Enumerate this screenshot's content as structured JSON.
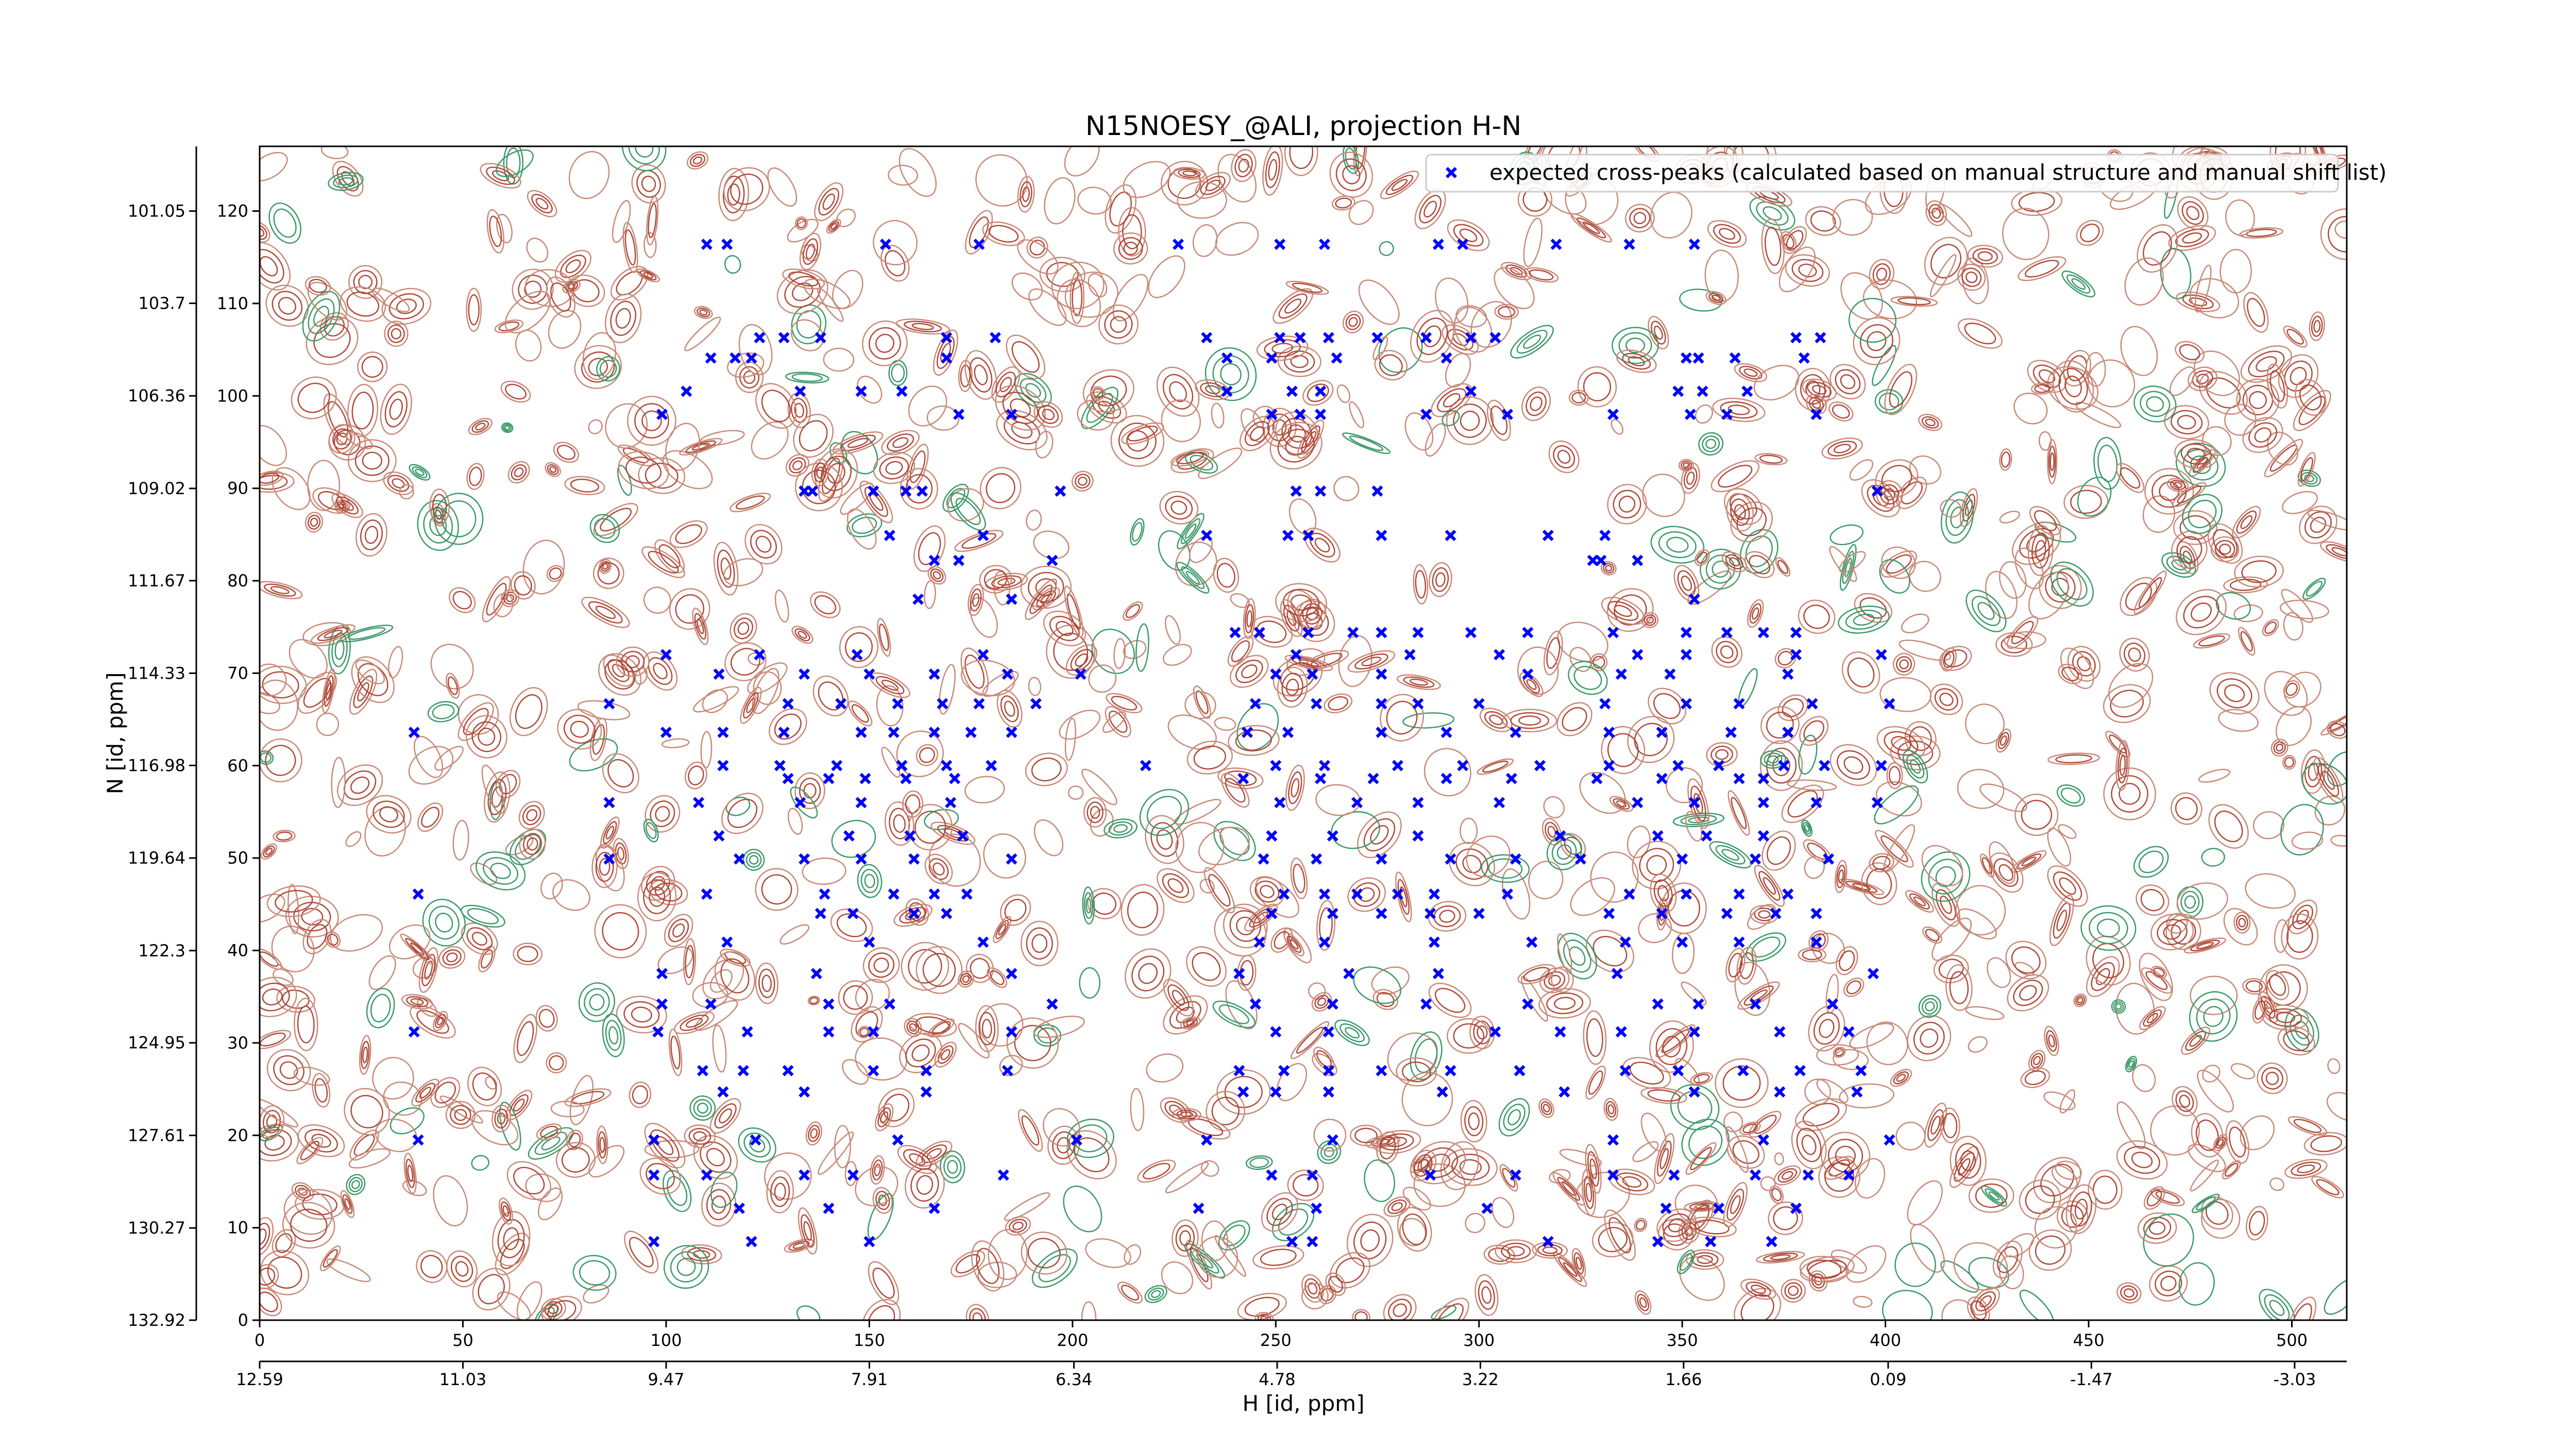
{
  "chart_data": {
    "type": "scatter",
    "title": "N15NOESY_@ALI, projection H-N",
    "x_label": "H [id, ppm]",
    "y_label": "N [id, ppm]",
    "xlim": [
      0,
      513.5
    ],
    "xticks": [
      0,
      50,
      100,
      150,
      200,
      250,
      300,
      350,
      400,
      450,
      500
    ],
    "ylim": [
      0,
      127
    ],
    "yticks": [
      0,
      10,
      20,
      30,
      40,
      50,
      60,
      70,
      80,
      90,
      100,
      110,
      120
    ],
    "x2lim": [
      12.59,
      -3.43
    ],
    "x2ticks": [
      12.59,
      11.03,
      9.47,
      7.91,
      6.34,
      4.78,
      3.22,
      1.66,
      0.09,
      -1.47,
      -3.03
    ],
    "y2lim": [
      132.92,
      99.19
    ],
    "y2ticks": [
      132.92,
      130.27,
      127.61,
      124.95,
      122.3,
      119.64,
      116.98,
      114.33,
      111.67,
      109.02,
      106.36,
      103.7,
      101.05
    ],
    "legend": "upper right",
    "series": [
      {
        "name": "expected cross-peaks (calculated based on manual structure and manual shift list)",
        "color": "#0000ff",
        "x": [
          110,
          115,
          154,
          177,
          226,
          251,
          262,
          290,
          296,
          319,
          337,
          353,
          123,
          129,
          138,
          169,
          181,
          233,
          251,
          256,
          263,
          275,
          287,
          298,
          304,
          378,
          384,
          111,
          117,
          121,
          169,
          238,
          249,
          265,
          292,
          351,
          354,
          363,
          380,
          105,
          133,
          148,
          158,
          238,
          254,
          261,
          298,
          349,
          355,
          366,
          99,
          172,
          185,
          249,
          256,
          261,
          287,
          307,
          333,
          352,
          361,
          383,
          134,
          136,
          151,
          159,
          163,
          197,
          255,
          261,
          275,
          398,
          155,
          178,
          233,
          253,
          258,
          276,
          293,
          317,
          331,
          166,
          172,
          195,
          328,
          330,
          339,
          162,
          185,
          353,
          240,
          246,
          258,
          269,
          276,
          285,
          298,
          312,
          333,
          351,
          361,
          370,
          378,
          100,
          123,
          147,
          178,
          255,
          283,
          305,
          339,
          351,
          378,
          399,
          113,
          134,
          150,
          166,
          184,
          202,
          250,
          259,
          276,
          312,
          335,
          347,
          376,
          86,
          130,
          143,
          157,
          168,
          177,
          191,
          245,
          260,
          276,
          285,
          300,
          331,
          351,
          364,
          382,
          401,
          38,
          100,
          114,
          129,
          148,
          156,
          166,
          175,
          185,
          243,
          253,
          276,
          292,
          309,
          332,
          345,
          362,
          376,
          114,
          128,
          142,
          158,
          169,
          180,
          218,
          250,
          262,
          280,
          296,
          315,
          332,
          349,
          359,
          375,
          385,
          399,
          130,
          140,
          149,
          159,
          171,
          242,
          261,
          274,
          292,
          308,
          329,
          345,
          364,
          370,
          86,
          108,
          133,
          148,
          170,
          251,
          270,
          285,
          305,
          339,
          353,
          370,
          383,
          398,
          113,
          145,
          160,
          173,
          249,
          264,
          285,
          320,
          344,
          356,
          370,
          86,
          118,
          134,
          148,
          161,
          185,
          247,
          260,
          276,
          293,
          309,
          325,
          350,
          368,
          386,
          39,
          110,
          139,
          156,
          166,
          174,
          252,
          262,
          270,
          280,
          289,
          307,
          337,
          351,
          364,
          376,
          138,
          146,
          161,
          169,
          249,
          264,
          276,
          288,
          300,
          332,
          345,
          361,
          373,
          383,
          115,
          150,
          178,
          246,
          262,
          289,
          313,
          336,
          350,
          364,
          383,
          99,
          137,
          185,
          241,
          268,
          290,
          334,
          397,
          99,
          111,
          140,
          155,
          195,
          245,
          264,
          287,
          312,
          344,
          354,
          368,
          387,
          38,
          98,
          120,
          140,
          151,
          185,
          250,
          263,
          304,
          320,
          335,
          353,
          374,
          391,
          109,
          119,
          130,
          151,
          164,
          184,
          241,
          252,
          263,
          276,
          293,
          310,
          336,
          349,
          365,
          379,
          394,
          114,
          134,
          164,
          242,
          250,
          263,
          291,
          321,
          353,
          374,
          393,
          39,
          97,
          122,
          157,
          201,
          233,
          264,
          333,
          370,
          401,
          97,
          110,
          134,
          146,
          183,
          249,
          259,
          288,
          309,
          333,
          348,
          368,
          381,
          391,
          118,
          140,
          166,
          231,
          260,
          302,
          346,
          359,
          378,
          97,
          121,
          150,
          254,
          259,
          317,
          344,
          357,
          372
        ],
        "values": [
          116.4,
          116.4,
          116.4,
          116.4,
          116.4,
          116.4,
          116.4,
          116.4,
          116.4,
          116.4,
          116.4,
          116.4,
          106.3,
          106.3,
          106.3,
          106.3,
          106.3,
          106.3,
          106.3,
          106.3,
          106.3,
          106.3,
          106.3,
          106.3,
          106.3,
          106.3,
          106.3,
          104.1,
          104.1,
          104.1,
          104.1,
          104.1,
          104.1,
          104.1,
          104.1,
          104.1,
          104.1,
          104.1,
          104.1,
          100.5,
          100.5,
          100.5,
          100.5,
          100.5,
          100.5,
          100.5,
          100.5,
          100.5,
          100.5,
          100.5,
          98,
          98,
          98,
          98,
          98,
          98,
          98,
          98,
          98,
          98,
          98,
          98,
          89.7,
          89.7,
          89.7,
          89.7,
          89.7,
          89.7,
          89.7,
          89.7,
          89.7,
          89.7,
          84.9,
          84.9,
          84.9,
          84.9,
          84.9,
          84.9,
          84.9,
          84.9,
          84.9,
          82.2,
          82.2,
          82.2,
          82.2,
          82.2,
          82.2,
          78,
          78,
          78,
          74.4,
          74.4,
          74.4,
          74.4,
          74.4,
          74.4,
          74.4,
          74.4,
          74.4,
          74.4,
          74.4,
          74.4,
          74.4,
          72,
          72,
          72,
          72,
          72,
          72,
          72,
          72,
          72,
          72,
          72,
          69.9,
          69.9,
          69.9,
          69.9,
          69.9,
          69.9,
          69.9,
          69.9,
          69.9,
          69.9,
          69.9,
          69.9,
          69.9,
          66.7,
          66.7,
          66.7,
          66.7,
          66.7,
          66.7,
          66.7,
          66.7,
          66.7,
          66.7,
          66.7,
          66.7,
          66.7,
          66.7,
          66.7,
          66.7,
          66.7,
          63.6,
          63.6,
          63.6,
          63.6,
          63.6,
          63.6,
          63.6,
          63.6,
          63.6,
          63.6,
          63.6,
          63.6,
          63.6,
          63.6,
          63.6,
          63.6,
          63.6,
          63.6,
          60,
          60,
          60,
          60,
          60,
          60,
          60,
          60,
          60,
          60,
          60,
          60,
          60,
          60,
          60,
          60,
          60,
          60,
          58.6,
          58.6,
          58.6,
          58.6,
          58.6,
          58.6,
          58.6,
          58.6,
          58.6,
          58.6,
          58.6,
          58.6,
          58.6,
          58.6,
          56,
          56,
          56,
          56,
          56,
          56,
          56,
          56,
          56,
          56,
          56,
          56,
          56,
          56,
          52.4,
          52.4,
          52.4,
          52.4,
          52.4,
          52.4,
          52.4,
          52.4,
          52.4,
          52.4,
          52.4,
          49.9,
          49.9,
          49.9,
          49.9,
          49.9,
          49.9,
          49.9,
          49.9,
          49.9,
          49.9,
          49.9,
          49.9,
          49.9,
          49.9,
          49.9,
          46.1,
          46.1,
          46.1,
          46.1,
          46.1,
          46.1,
          46.1,
          46.1,
          46.1,
          46.1,
          46.1,
          46.1,
          46.1,
          46.1,
          46.1,
          46.1,
          44,
          44,
          44,
          44,
          44,
          44,
          44,
          44,
          44,
          44,
          44,
          44,
          44,
          44,
          40.9,
          40.9,
          40.9,
          40.9,
          40.9,
          40.9,
          40.9,
          40.9,
          40.9,
          40.9,
          40.9,
          37.5,
          37.5,
          37.5,
          37.5,
          37.5,
          37.5,
          37.5,
          37.5,
          34.2,
          34.2,
          34.2,
          34.2,
          34.2,
          34.2,
          34.2,
          34.2,
          34.2,
          34.2,
          34.2,
          34.2,
          34.2,
          31.2,
          31.2,
          31.2,
          31.2,
          31.2,
          31.2,
          31.2,
          31.2,
          31.2,
          31.2,
          31.2,
          31.2,
          31.2,
          31.2,
          27,
          27,
          27,
          27,
          27,
          27,
          27,
          27,
          27,
          27,
          27,
          27,
          27,
          27,
          27,
          27,
          27,
          24.7,
          24.7,
          24.7,
          24.7,
          24.7,
          24.7,
          24.7,
          24.7,
          24.7,
          24.7,
          24.7,
          19.5,
          19.5,
          19.5,
          19.5,
          19.5,
          19.5,
          19.5,
          19.5,
          19.5,
          19.5,
          15.7,
          15.7,
          15.7,
          15.7,
          15.7,
          15.7,
          15.7,
          15.7,
          15.7,
          15.7,
          15.7,
          15.7,
          15.7,
          15.7,
          12.1,
          12.1,
          12.1,
          12.1,
          12.1,
          12.1,
          12.1,
          12.1,
          12.1,
          8.5,
          8.5,
          8.5,
          8.5,
          8.5,
          8.5,
          8.5,
          8.5,
          8.5
        ]
      }
    ]
  }
}
